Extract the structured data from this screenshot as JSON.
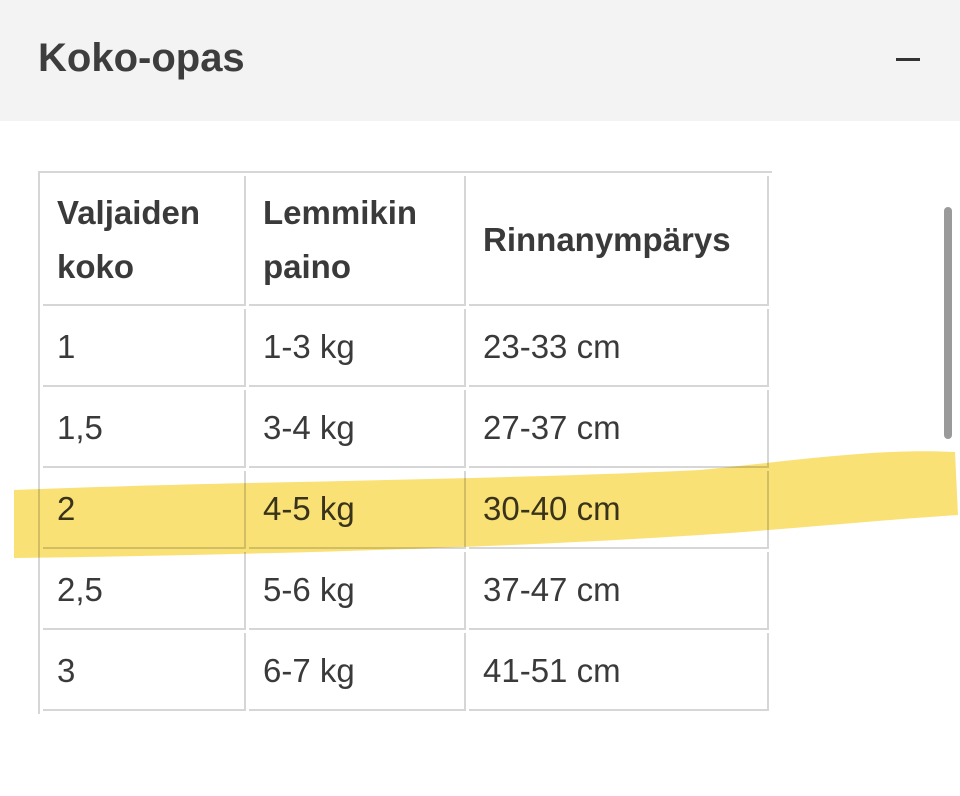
{
  "header": {
    "title": "Koko-opas",
    "collapse_icon": "minus-icon"
  },
  "table": {
    "columns": [
      "Valjaiden koko",
      "Lemmikin paino",
      "Rinnanympärys"
    ],
    "rows": [
      [
        "1",
        "1-3 kg",
        "23-33 cm"
      ],
      [
        "1,5",
        "3-4 kg",
        "27-37 cm"
      ],
      [
        "2",
        "4-5 kg",
        "30-40 cm"
      ],
      [
        "2,5",
        "5-6 kg",
        "37-47 cm"
      ],
      [
        "3",
        "6-7 kg",
        "41-51 cm"
      ]
    ],
    "highlighted_row": 2,
    "highlight_color": "#f8d748"
  }
}
